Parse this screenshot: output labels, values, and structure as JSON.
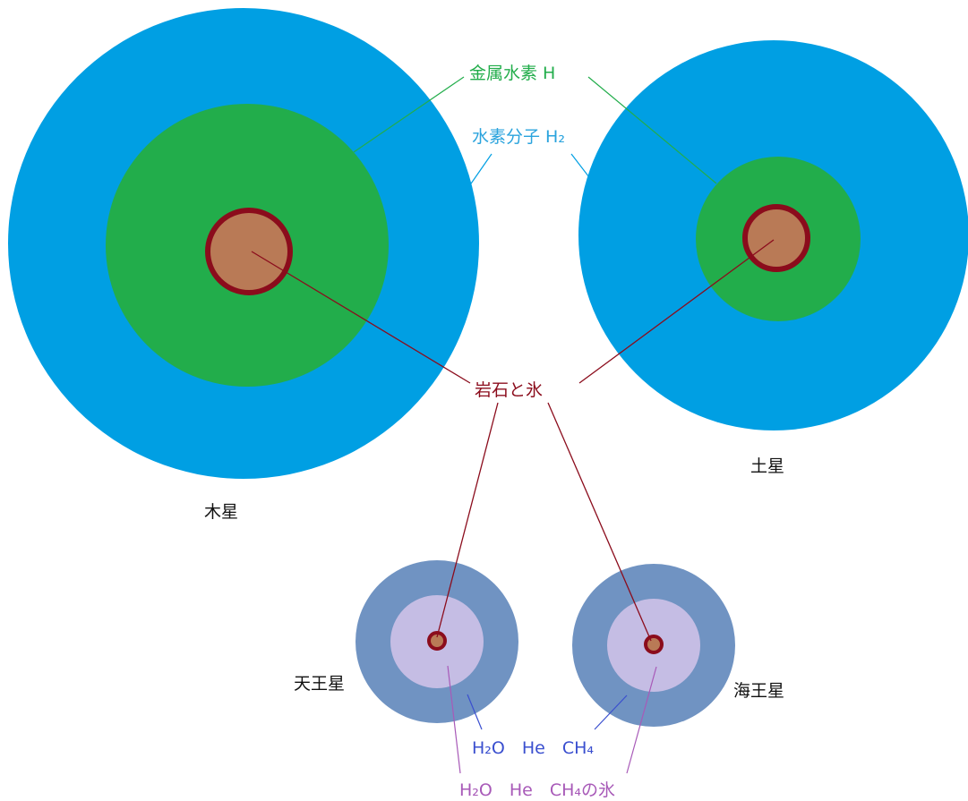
{
  "colors": {
    "hydrogen_molecular": "#009fe3",
    "metallic_hydrogen": "#22ad4b",
    "rock_ice_fill": "#b97a56",
    "rock_ice_stroke": "#8b0c1c",
    "ice_giant_outer": "#7093c2",
    "ice_giant_inner": "#c5bde4",
    "gas_label": "#3a4fcf",
    "ice_label": "#a85ab8",
    "metal_label": "#22ad4b",
    "molecular_label": "#2aa3dd"
  },
  "planets": {
    "jupiter": "木星",
    "saturn": "土星",
    "uranus": "天王星",
    "neptune": "海王星"
  },
  "layers": {
    "metallic_hydrogen": "金属水素 H",
    "molecular_hydrogen": "水素分子 H₂",
    "rock_ice": "岩石と氷",
    "gas_mix": "H₂O He CH₄",
    "ice_mix": "H₂O He CH₄の氷"
  }
}
